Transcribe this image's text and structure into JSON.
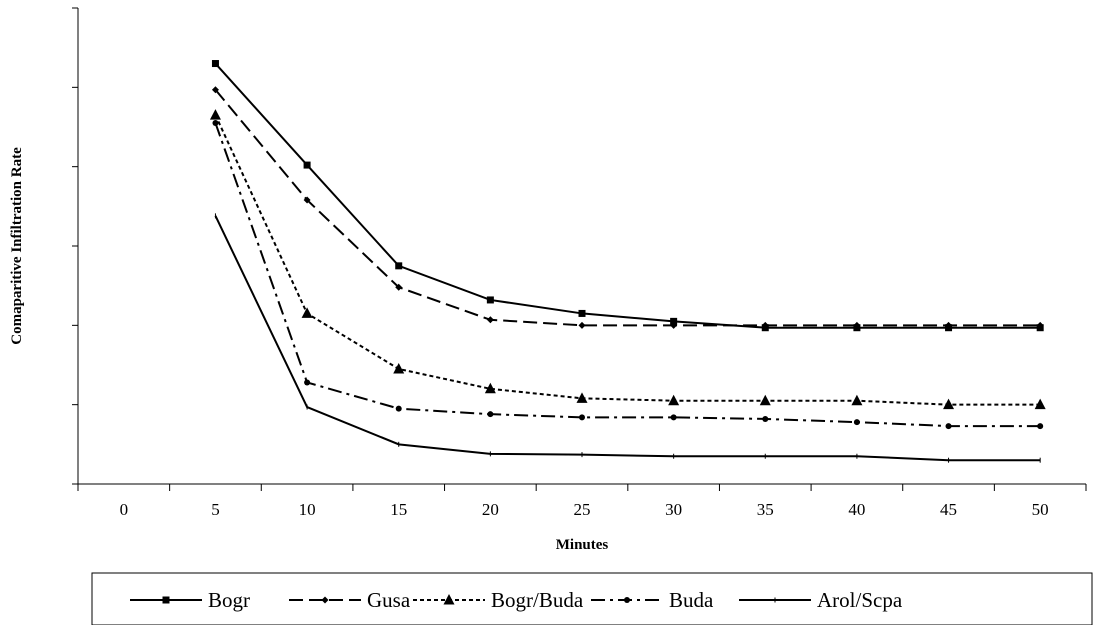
{
  "chart_data": {
    "type": "line",
    "title": "",
    "xlabel": "Minutes",
    "ylabel": "Comaparitive Infiltration Rate",
    "categories": [
      "0",
      "5",
      "10",
      "15",
      "20",
      "25",
      "30",
      "35",
      "40",
      "45",
      "50"
    ],
    "x": [
      0,
      5,
      10,
      15,
      20,
      25,
      30,
      35,
      40,
      45,
      50
    ],
    "ylim": [
      0,
      6
    ],
    "y_tick_labels_shown": false,
    "grid": false,
    "legend_position": "bottom",
    "series": [
      {
        "name": "Bogr",
        "style": "solid",
        "marker": "square",
        "values": [
          null,
          5.3,
          4.02,
          2.75,
          2.32,
          2.15,
          2.05,
          1.97,
          1.97,
          1.97,
          1.97
        ]
      },
      {
        "name": "Gusa",
        "style": "dash",
        "marker": "diamond",
        "values": [
          null,
          4.97,
          3.58,
          2.48,
          2.07,
          2.0,
          2.0,
          2.0,
          2.0,
          2.0,
          2.0
        ]
      },
      {
        "name": "Bogr/Buda",
        "style": "dot",
        "marker": "triangle",
        "values": [
          null,
          4.65,
          2.15,
          1.45,
          1.2,
          1.08,
          1.05,
          1.05,
          1.05,
          1.0,
          1.0
        ]
      },
      {
        "name": "Buda",
        "style": "dashdot",
        "marker": "circle",
        "values": [
          null,
          4.55,
          1.28,
          0.95,
          0.88,
          0.84,
          0.84,
          0.82,
          0.78,
          0.73,
          0.73
        ]
      },
      {
        "name": "Arol/Scpa",
        "style": "solid",
        "marker": "none",
        "values": [
          null,
          3.38,
          0.97,
          0.5,
          0.38,
          0.37,
          0.35,
          0.35,
          0.35,
          0.3,
          0.3
        ]
      }
    ]
  }
}
